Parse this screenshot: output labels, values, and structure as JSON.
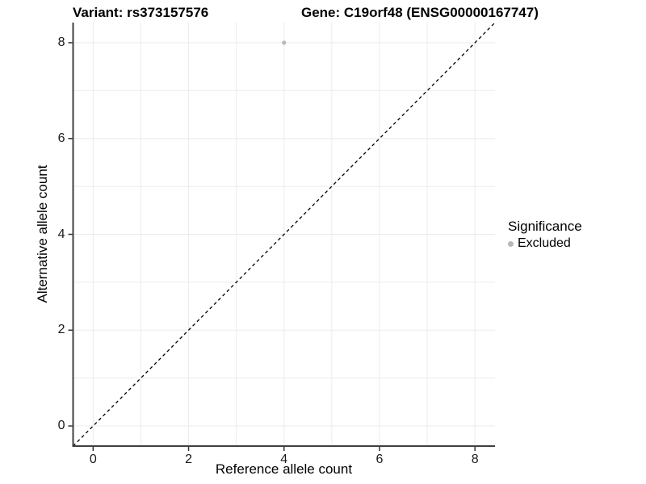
{
  "titles": {
    "left": "Variant: rs373157576",
    "right": "Gene: C19orf48 (ENSG00000167747)"
  },
  "axes": {
    "x_label": "Reference allele count",
    "y_label": "Alternative allele count"
  },
  "legend": {
    "title": "Significance",
    "items": [
      {
        "label": "Excluded",
        "color": "#b8b8b8"
      }
    ]
  },
  "chart_data": {
    "type": "scatter",
    "title": "Variant: rs373157576 | Gene: C19orf48 (ENSG00000167747)",
    "xlabel": "Reference allele count",
    "ylabel": "Alternative allele count",
    "xlim": [
      -0.42,
      8.42
    ],
    "ylim": [
      -0.42,
      8.42
    ],
    "x_ticks": [
      "0",
      "2",
      "4",
      "6",
      "8"
    ],
    "x_tick_values": [
      0,
      2,
      4,
      6,
      8
    ],
    "y_ticks": [
      "0",
      "2",
      "4",
      "6",
      "8"
    ],
    "y_tick_values": [
      0,
      2,
      4,
      6,
      8
    ],
    "grid_values": [
      0,
      1,
      2,
      3,
      4,
      5,
      6,
      7,
      8
    ],
    "grid": true,
    "legend_position": "right",
    "series": [
      {
        "name": "Excluded",
        "color": "#b8b8b8",
        "point_radius": 2.6,
        "points": [
          {
            "x": 4,
            "y": 8
          }
        ]
      }
    ],
    "reference_line": {
      "description": "identity line y = x",
      "style": "dashed",
      "color": "#000000",
      "from": [
        -0.42,
        -0.42
      ],
      "to": [
        8.42,
        8.42
      ]
    },
    "colors": {
      "gridline": "#ebebeb",
      "axis_line": "#404040",
      "tick_mark": "#333333",
      "point": "#b8b8b8",
      "background": "#ffffff"
    }
  }
}
